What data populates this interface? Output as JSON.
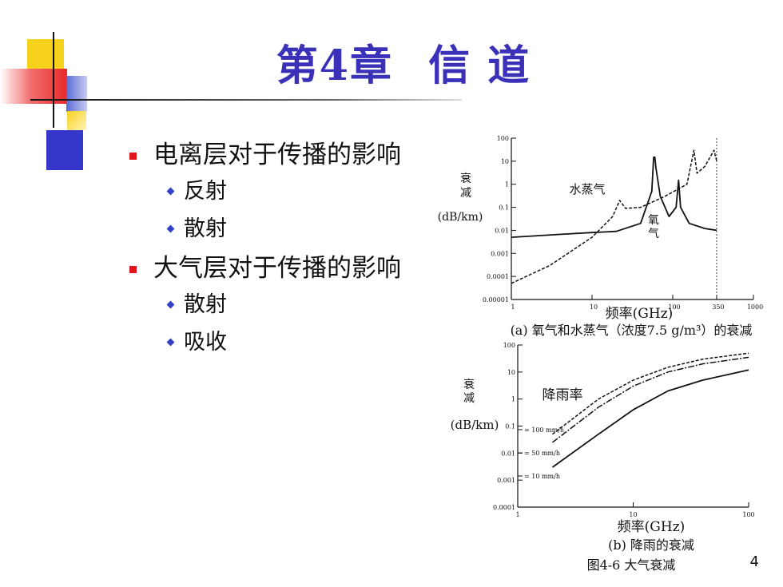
{
  "slide": {
    "title_part1": "第4章",
    "title_part2": "信 道",
    "page_number": "4"
  },
  "bullets": [
    {
      "text": "电离层对于传播的影响",
      "sub": [
        "反射",
        "散射"
      ]
    },
    {
      "text": "大气层对于传播的影响",
      "sub": [
        "散射",
        "吸收"
      ]
    }
  ],
  "figure": {
    "caption": "图4-6 大气衰减",
    "chart_a_caption": "(a) 氧气和水蒸气（浓度7.5 g/m³）的衰减",
    "chart_b_caption": "(b) 降雨的衰减"
  },
  "chart_data": [
    {
      "type": "line",
      "ylabel": "衰减 (dB/km)",
      "xlabel": "频率(GHz)",
      "x_scale": "log",
      "y_scale": "log",
      "x_ticks": [
        "1",
        "10",
        "100",
        "350",
        "1000"
      ],
      "y_ticks": [
        "100",
        "10",
        "1",
        "0.1",
        "0.01",
        "0.001",
        "0.0001",
        "0.00001"
      ],
      "xlim": [
        1,
        1000
      ],
      "ylim": [
        1e-05,
        100
      ],
      "grid": false,
      "annotations": [
        "水蒸气",
        "氧气"
      ],
      "series": [
        {
          "name": "氧气",
          "style": "solid",
          "x": [
            1,
            5,
            10,
            20,
            40,
            55,
            58,
            60,
            62,
            70,
            90,
            110,
            118,
            125,
            160,
            250,
            350
          ],
          "y": [
            0.005,
            0.007,
            0.008,
            0.009,
            0.02,
            0.5,
            15,
            15,
            5,
            0.3,
            0.04,
            0.1,
            1.5,
            0.1,
            0.02,
            0.012,
            0.01
          ]
        },
        {
          "name": "水蒸气",
          "style": "dashed",
          "x": [
            1,
            3,
            10,
            18,
            22,
            26,
            40,
            80,
            150,
            183,
            200,
            250,
            325,
            350
          ],
          "y": [
            5e-05,
            0.0003,
            0.005,
            0.04,
            0.2,
            0.09,
            0.1,
            0.3,
            1,
            30,
            3,
            6,
            30,
            10
          ]
        }
      ]
    },
    {
      "type": "line",
      "ylabel": "衰减 (dB/km)",
      "xlabel": "频率(GHz)",
      "x_scale": "log",
      "y_scale": "log",
      "x_ticks": [
        "1",
        "10",
        "100"
      ],
      "y_ticks": [
        "100",
        "10",
        "1",
        "0.1",
        "0.01",
        "0.001",
        "0.0001"
      ],
      "xlim": [
        1,
        100
      ],
      "ylim": [
        0.0001,
        100
      ],
      "grid": false,
      "annotations": [
        "降雨率"
      ],
      "series": [
        {
          "name": "= 100 mm/h",
          "style": "dashed",
          "x": [
            2,
            5,
            10,
            20,
            40,
            100
          ],
          "y": [
            0.05,
            1,
            5,
            15,
            30,
            50
          ]
        },
        {
          "name": "= 50 mm/h",
          "style": "dashdot",
          "x": [
            2,
            5,
            10,
            20,
            40,
            100
          ],
          "y": [
            0.025,
            0.5,
            3,
            10,
            20,
            35
          ]
        },
        {
          "name": "= 10 mm/h",
          "style": "solid",
          "x": [
            2,
            5,
            10,
            20,
            40,
            100
          ],
          "y": [
            0.003,
            0.05,
            0.4,
            2,
            5,
            12
          ]
        }
      ]
    }
  ]
}
